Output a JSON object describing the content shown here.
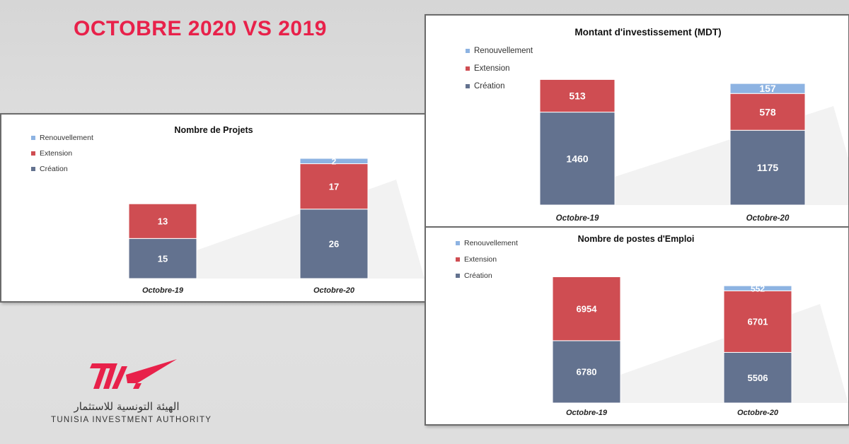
{
  "page": {
    "title": "OCTOBRE 2020 VS 2019"
  },
  "colors": {
    "creation": "#63728f",
    "extension": "#cf4d52",
    "renouvellement": "#8db3e2",
    "title_red": "#e8214a"
  },
  "logo": {
    "arabic": "الهيئة التونسية للاستثمار",
    "english": "TUNISIA INVESTMENT AUTHORITY",
    "mark": "TIA"
  },
  "chart_data": [
    {
      "type": "bar",
      "stacked": true,
      "title": "Nombre de Projets",
      "categories": [
        "Octobre-19",
        "Octobre-20"
      ],
      "series": [
        {
          "name": "Création",
          "values": [
            15,
            26
          ]
        },
        {
          "name": "Extension",
          "values": [
            13,
            17
          ]
        },
        {
          "name": "Renouvellement",
          "values": [
            0,
            2
          ]
        }
      ],
      "legend": "top-left",
      "grid": false
    },
    {
      "type": "bar",
      "stacked": true,
      "title": "Montant d'investissement (MDT)",
      "categories": [
        "Octobre-19",
        "Octobre-20"
      ],
      "series": [
        {
          "name": "Création",
          "values": [
            1460,
            1175
          ]
        },
        {
          "name": "Extension",
          "values": [
            513,
            578
          ]
        },
        {
          "name": "Renouvellement",
          "values": [
            0,
            157
          ]
        }
      ],
      "legend": "top-left",
      "grid": false
    },
    {
      "type": "bar",
      "stacked": true,
      "title": "Nombre de postes d'Emploi",
      "categories": [
        "Octobre-19",
        "Octobre-20"
      ],
      "series": [
        {
          "name": "Création",
          "values": [
            6780,
            5506
          ]
        },
        {
          "name": "Extension",
          "values": [
            6954,
            6701
          ]
        },
        {
          "name": "Renouvellement",
          "values": [
            0,
            552
          ]
        }
      ],
      "legend": "top-left",
      "grid": false
    }
  ]
}
